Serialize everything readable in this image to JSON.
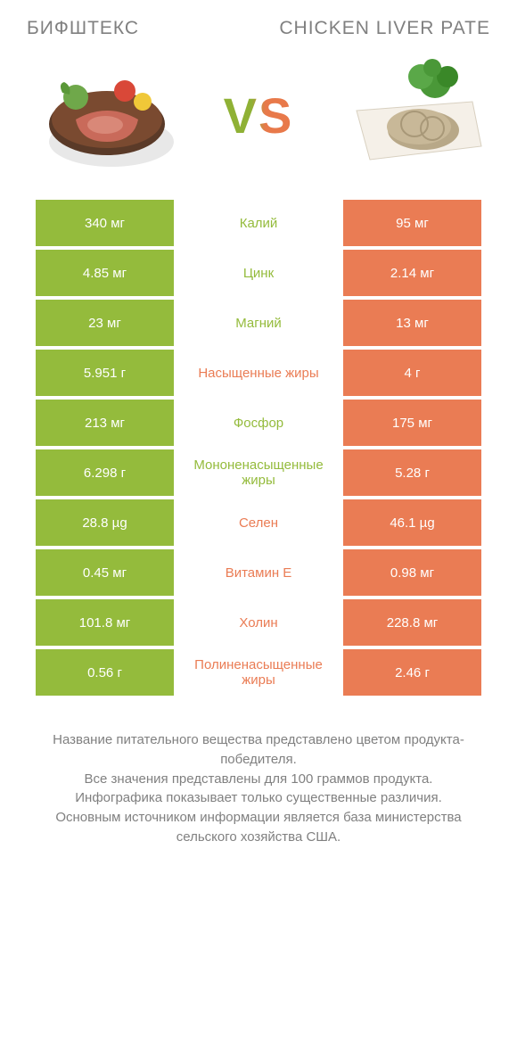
{
  "colors": {
    "green": "#94bb3c",
    "orange": "#ea7c54",
    "grey": "#808080"
  },
  "header": {
    "left_title": "Бифштекс",
    "right_title": "Chicken liver pate",
    "vs": "VS"
  },
  "rows": [
    {
      "left": "340 мг",
      "mid": "Калий",
      "right": "95 мг",
      "winner": "left"
    },
    {
      "left": "4.85 мг",
      "mid": "Цинк",
      "right": "2.14 мг",
      "winner": "left"
    },
    {
      "left": "23 мг",
      "mid": "Магний",
      "right": "13 мг",
      "winner": "left"
    },
    {
      "left": "5.951 г",
      "mid": "Насыщенные жиры",
      "right": "4 г",
      "winner": "right"
    },
    {
      "left": "213 мг",
      "mid": "Фосфор",
      "right": "175 мг",
      "winner": "left"
    },
    {
      "left": "6.298 г",
      "mid": "Мононенасыщенные жиры",
      "right": "5.28 г",
      "winner": "left"
    },
    {
      "left": "28.8 µg",
      "mid": "Селен",
      "right": "46.1 µg",
      "winner": "right"
    },
    {
      "left": "0.45 мг",
      "mid": "Витамин E",
      "right": "0.98 мг",
      "winner": "right"
    },
    {
      "left": "101.8 мг",
      "mid": "Холин",
      "right": "228.8 мг",
      "winner": "right"
    },
    {
      "left": "0.56 г",
      "mid": "Полиненасыщенные жиры",
      "right": "2.46 г",
      "winner": "right"
    }
  ],
  "footer": {
    "line1": "Название питательного вещества представлено цветом продукта-победителя.",
    "line2": "Все значения представлены для 100 граммов продукта.",
    "line3": "Инфографика показывает только существенные различия.",
    "line4": "Основным источником информации является база министерства сельского хозяйства США."
  }
}
